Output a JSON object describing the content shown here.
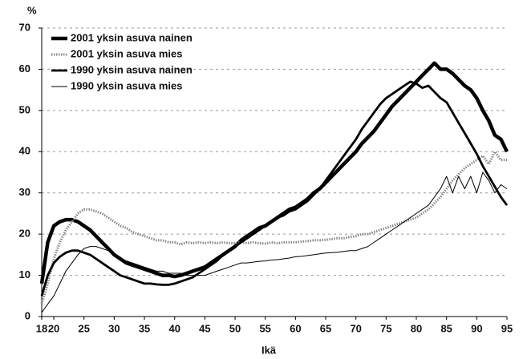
{
  "chart_data": {
    "type": "line",
    "y_label": "%",
    "x_label": "Ikä",
    "x": [
      18,
      19,
      20,
      21,
      22,
      23,
      24,
      25,
      26,
      27,
      28,
      29,
      30,
      31,
      32,
      33,
      34,
      35,
      36,
      37,
      38,
      39,
      40,
      41,
      42,
      43,
      44,
      45,
      46,
      47,
      48,
      49,
      50,
      51,
      52,
      53,
      54,
      55,
      56,
      57,
      58,
      59,
      60,
      61,
      62,
      63,
      64,
      65,
      66,
      67,
      68,
      69,
      70,
      71,
      72,
      73,
      74,
      75,
      76,
      77,
      78,
      79,
      80,
      81,
      82,
      83,
      84,
      85,
      86,
      87,
      88,
      89,
      90,
      91,
      92,
      93,
      94,
      95
    ],
    "xlim": [
      18,
      95
    ],
    "xticks": [
      18,
      20,
      25,
      30,
      35,
      40,
      45,
      50,
      55,
      60,
      65,
      70,
      75,
      80,
      85,
      90,
      95
    ],
    "ylim": [
      0,
      70
    ],
    "yticks": [
      0,
      10,
      20,
      30,
      40,
      50,
      60,
      70
    ],
    "grid": true,
    "legend": "upper left",
    "series": [
      {
        "name": "2001 yksin asuva nainen",
        "color": "#000000",
        "values": [
          8,
          18,
          22,
          23,
          23.5,
          23.5,
          23,
          22,
          21,
          19.5,
          18,
          16.5,
          15,
          14,
          13,
          12.5,
          12,
          11.5,
          11,
          10.5,
          10,
          10,
          9.7,
          10,
          10.5,
          11,
          11.5,
          12,
          13,
          14,
          15,
          16,
          17,
          18.5,
          19.5,
          20.5,
          21.5,
          22,
          23,
          24,
          25,
          26,
          26.5,
          27.5,
          28.5,
          30,
          31,
          32.5,
          34,
          35.5,
          37,
          38.5,
          40,
          42,
          43.5,
          45,
          47,
          49,
          51,
          52.5,
          54,
          55.5,
          57,
          58.5,
          60,
          61.5,
          60,
          60,
          59,
          57.5,
          56,
          55,
          53,
          50,
          47.5,
          44,
          43,
          40
        ]
      },
      {
        "name": "2001 yksin asuva mies",
        "color": "#888888",
        "values": [
          3,
          8,
          14,
          18,
          21,
          23,
          25,
          26,
          26,
          25.5,
          25,
          24,
          23,
          22,
          21.5,
          20.5,
          20,
          19.5,
          19,
          18.5,
          18.5,
          18,
          18,
          17.5,
          18,
          17.8,
          18,
          17.8,
          18,
          17.8,
          18,
          17.8,
          17.8,
          18,
          17.8,
          18,
          17.8,
          17.7,
          18,
          17.8,
          18,
          18,
          18,
          18.2,
          18.3,
          18.5,
          18.5,
          18.6,
          18.8,
          19,
          19,
          19.3,
          19.5,
          20,
          20,
          20.5,
          21,
          21.5,
          22,
          22.5,
          23,
          23.5,
          24,
          25,
          26,
          27.5,
          29,
          31,
          33,
          34.5,
          36,
          37,
          38,
          39,
          37,
          40,
          38,
          38
        ]
      },
      {
        "name": "1990 yksin asuva nainen",
        "color": "#000000",
        "values": [
          5,
          10,
          13,
          14.5,
          15.5,
          16,
          16,
          15.5,
          15,
          14,
          13,
          12,
          11,
          10,
          9.5,
          9,
          8.5,
          8,
          8,
          7.8,
          7.7,
          7.7,
          8,
          8.5,
          9,
          9.5,
          10.5,
          11.5,
          12.5,
          13.5,
          15,
          16,
          17,
          18,
          19,
          20,
          21,
          22,
          23,
          24,
          24.5,
          25.5,
          26,
          27,
          28,
          29.5,
          31,
          33,
          35,
          37,
          39,
          41,
          43,
          45.5,
          47.5,
          49.5,
          51.5,
          53,
          54,
          55,
          56,
          57,
          56.5,
          55.5,
          56,
          54.5,
          53,
          52,
          49.5,
          47,
          44.5,
          42,
          39.5,
          36.5,
          34,
          31.5,
          29,
          27
        ]
      },
      {
        "name": "1990 yksin asuva mies",
        "color": "#000000",
        "values": [
          1,
          3,
          5,
          8,
          11,
          13,
          15,
          16.5,
          17,
          17,
          16.5,
          16,
          15,
          14,
          13.5,
          13,
          12.5,
          12,
          11.5,
          11,
          11,
          10.5,
          10.5,
          10.5,
          10,
          10,
          10,
          10,
          10.5,
          11,
          11.5,
          12,
          12.5,
          13,
          13,
          13.2,
          13.4,
          13.5,
          13.7,
          13.8,
          14,
          14.2,
          14.5,
          14.6,
          14.8,
          15,
          15.2,
          15.4,
          15.5,
          15.6,
          15.8,
          16,
          16,
          16.5,
          17,
          18,
          19,
          20,
          21,
          22,
          23,
          24,
          25,
          26,
          27,
          29,
          31,
          34,
          30,
          34,
          31,
          34,
          30,
          35,
          33,
          30,
          32,
          31
        ]
      }
    ]
  }
}
